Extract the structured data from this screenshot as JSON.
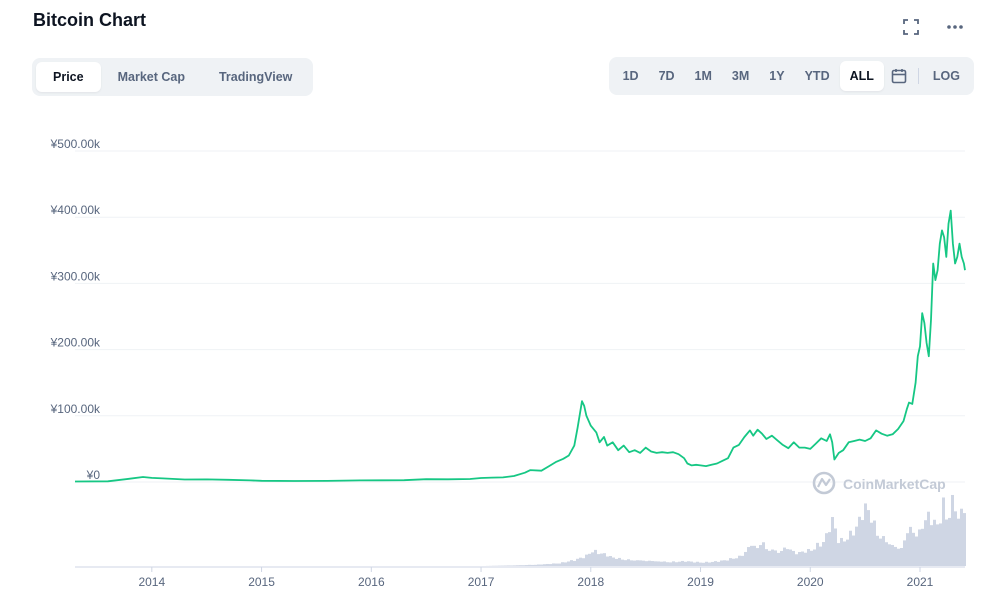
{
  "header": {
    "title": "Bitcoin Chart"
  },
  "icons": {
    "expand": "expand-icon",
    "more": "more-icon",
    "calendar": "calendar-icon"
  },
  "view_tabs": [
    {
      "label": "Price",
      "active": true
    },
    {
      "label": "Market Cap",
      "active": false
    },
    {
      "label": "TradingView",
      "active": false
    }
  ],
  "range_buttons": [
    {
      "label": "1D",
      "active": false
    },
    {
      "label": "7D",
      "active": false
    },
    {
      "label": "1M",
      "active": false
    },
    {
      "label": "3M",
      "active": false
    },
    {
      "label": "1Y",
      "active": false
    },
    {
      "label": "YTD",
      "active": false
    },
    {
      "label": "ALL",
      "active": true
    }
  ],
  "log_label": "LOG",
  "watermark": "CoinMarketCap",
  "colors": {
    "line": "#16c784",
    "volume": "#cfd6e4",
    "grid": "#eff2f5",
    "text": "#58667e"
  },
  "chart_data": {
    "type": "line",
    "title": "Bitcoin Chart",
    "ylabel": "",
    "xlabel": "",
    "yticks": [
      "¥0",
      "¥100.00k",
      "¥200.00k",
      "¥300.00k",
      "¥400.00k",
      "¥500.00k"
    ],
    "ylim": [
      0,
      500000
    ],
    "xticks": [
      "2014",
      "2015",
      "2016",
      "2017",
      "2018",
      "2019",
      "2020",
      "2021"
    ],
    "xlim": [
      2013.3,
      2021.41
    ],
    "grid": true,
    "series": [
      {
        "kind": "price",
        "x": [
          2013.3,
          2013.6,
          2013.8,
          2013.92,
          2014.0,
          2014.1,
          2014.3,
          2014.5,
          2014.7,
          2014.9,
          2015.0,
          2015.3,
          2015.6,
          2015.9,
          2016.1,
          2016.3,
          2016.5,
          2016.7,
          2016.9,
          2017.0,
          2017.1,
          2017.2,
          2017.3,
          2017.4,
          2017.45,
          2017.55,
          2017.62,
          2017.68,
          2017.75,
          2017.8,
          2017.85,
          2017.88,
          2017.92,
          2017.94,
          2017.96,
          2018.0,
          2018.05,
          2018.08,
          2018.12,
          2018.15,
          2018.2,
          2018.25,
          2018.3,
          2018.35,
          2018.4,
          2018.45,
          2018.5,
          2018.55,
          2018.6,
          2018.65,
          2018.7,
          2018.75,
          2018.8,
          2018.85,
          2018.88,
          2018.92,
          2018.96,
          2019.0,
          2019.05,
          2019.1,
          2019.15,
          2019.2,
          2019.25,
          2019.3,
          2019.35,
          2019.4,
          2019.45,
          2019.48,
          2019.52,
          2019.56,
          2019.6,
          2019.65,
          2019.7,
          2019.75,
          2019.8,
          2019.85,
          2019.9,
          2019.95,
          2020.0,
          2020.05,
          2020.1,
          2020.15,
          2020.18,
          2020.2,
          2020.22,
          2020.26,
          2020.3,
          2020.35,
          2020.4,
          2020.45,
          2020.5,
          2020.55,
          2020.6,
          2020.65,
          2020.7,
          2020.75,
          2020.8,
          2020.85,
          2020.88,
          2020.9,
          2020.93,
          2020.96,
          2020.98,
          2021.0,
          2021.02,
          2021.04,
          2021.06,
          2021.08,
          2021.1,
          2021.12,
          2021.14,
          2021.16,
          2021.18,
          2021.2,
          2021.22,
          2021.24,
          2021.26,
          2021.28,
          2021.3,
          2021.32,
          2021.34,
          2021.36,
          2021.38,
          2021.4,
          2021.41
        ],
        "y": [
          700,
          1000,
          5000,
          7500,
          6200,
          5500,
          3800,
          4000,
          3300,
          2400,
          1800,
          1500,
          1600,
          2400,
          2600,
          2700,
          4200,
          4100,
          4600,
          6000,
          6600,
          7000,
          9000,
          14000,
          18000,
          17000,
          24000,
          30000,
          35000,
          40000,
          55000,
          82000,
          122000,
          115000,
          100000,
          85000,
          75000,
          60000,
          68000,
          55000,
          60000,
          48000,
          55000,
          45000,
          48000,
          44000,
          52000,
          46000,
          44000,
          45000,
          44000,
          45000,
          42000,
          36000,
          28000,
          25000,
          26000,
          25000,
          24000,
          26000,
          28000,
          32000,
          36000,
          52000,
          56000,
          68000,
          78000,
          70000,
          79000,
          73000,
          65000,
          70000,
          63000,
          56000,
          51000,
          60000,
          52000,
          52000,
          50000,
          58000,
          66000,
          62000,
          72000,
          60000,
          34000,
          44000,
          48000,
          60000,
          62000,
          64000,
          62000,
          66000,
          78000,
          73000,
          70000,
          72000,
          80000,
          92000,
          110000,
          120000,
          118000,
          150000,
          190000,
          205000,
          255000,
          240000,
          210000,
          190000,
          245000,
          330000,
          305000,
          320000,
          360000,
          380000,
          370000,
          340000,
          390000,
          410000,
          360000,
          330000,
          340000,
          360000,
          340000,
          330000,
          320000
        ]
      },
      {
        "kind": "volume",
        "x": [
          2013.3,
          2014.0,
          2015.0,
          2016.0,
          2017.0,
          2017.3,
          2017.5,
          2017.7,
          2017.85,
          2017.95,
          2018.0,
          2018.1,
          2018.2,
          2018.35,
          2018.5,
          2018.7,
          2018.85,
          2019.0,
          2019.1,
          2019.2,
          2019.3,
          2019.35,
          2019.4,
          2019.45,
          2019.5,
          2019.55,
          2019.6,
          2019.65,
          2019.7,
          2019.75,
          2019.8,
          2019.85,
          2019.9,
          2019.95,
          2020.0,
          2020.05,
          2020.1,
          2020.12,
          2020.15,
          2020.18,
          2020.2,
          2020.25,
          2020.3,
          2020.35,
          2020.4,
          2020.45,
          2020.5,
          2020.55,
          2020.6,
          2020.65,
          2020.7,
          2020.75,
          2020.8,
          2020.85,
          2020.9,
          2020.95,
          2021.0,
          2021.02,
          2021.05,
          2021.08,
          2021.1,
          2021.12,
          2021.15,
          2021.18,
          2021.2,
          2021.23,
          2021.26,
          2021.29,
          2021.32,
          2021.35,
          2021.38,
          2021.4
        ],
        "y": [
          0,
          0,
          0,
          0,
          0,
          0.01,
          0.02,
          0.04,
          0.09,
          0.15,
          0.22,
          0.18,
          0.12,
          0.09,
          0.08,
          0.06,
          0.07,
          0.05,
          0.06,
          0.08,
          0.12,
          0.14,
          0.22,
          0.32,
          0.27,
          0.36,
          0.25,
          0.24,
          0.22,
          0.26,
          0.28,
          0.18,
          0.21,
          0.22,
          0.24,
          0.3,
          0.34,
          0.38,
          0.5,
          0.7,
          0.62,
          0.35,
          0.38,
          0.45,
          0.55,
          0.72,
          0.9,
          0.7,
          0.5,
          0.42,
          0.35,
          0.3,
          0.25,
          0.4,
          0.6,
          0.45,
          0.55,
          0.7,
          0.85,
          0.6,
          0.75,
          0.7,
          0.55,
          0.75,
          0.95,
          0.65,
          0.85,
          0.95,
          0.8,
          0.7,
          0.78,
          0.95
        ]
      }
    ]
  }
}
